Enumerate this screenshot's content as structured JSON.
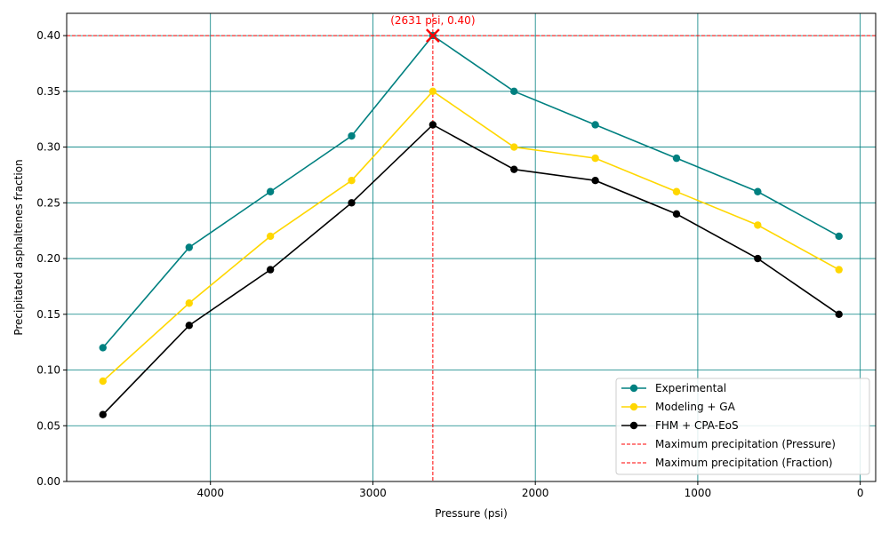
{
  "chart_data": {
    "type": "line",
    "title": "",
    "xlabel": "Pressure (psi)",
    "ylabel": "Precipitated asphaltenes fraction",
    "x_inverted": true,
    "xlim": [
      4885,
      -95
    ],
    "ylim": [
      0,
      0.42
    ],
    "x_ticks": [
      4000,
      3000,
      2000,
      1000,
      0
    ],
    "y_ticks": [
      0.0,
      0.05,
      0.1,
      0.15,
      0.2,
      0.25,
      0.3,
      0.35,
      0.4
    ],
    "grid": true,
    "grid_color": "#008080",
    "legend_position": "lower-right",
    "x": [
      4662,
      4131,
      3631,
      3131,
      2631,
      2131,
      1631,
      1131,
      631,
      131
    ],
    "series": [
      {
        "name": "Experimental",
        "color": "#008080",
        "values": [
          0.12,
          0.21,
          0.26,
          0.31,
          0.4,
          0.35,
          0.32,
          0.29,
          0.26,
          0.22
        ]
      },
      {
        "name": "Modeling + GA",
        "color": "#FFD700",
        "values": [
          0.09,
          0.16,
          0.22,
          0.27,
          0.35,
          0.3,
          0.29,
          0.26,
          0.23,
          0.19
        ]
      },
      {
        "name": "FHM + CPA-EoS",
        "color": "#000000",
        "values": [
          0.06,
          0.14,
          0.19,
          0.25,
          0.32,
          0.28,
          0.27,
          0.24,
          0.2,
          0.15
        ]
      }
    ],
    "reference_lines": [
      {
        "name": "Maximum precipitation (Pressure)",
        "orientation": "vertical",
        "value": 2631,
        "color": "#FF0000",
        "style": "dashed"
      },
      {
        "name": "Maximum precipitation (Fraction)",
        "orientation": "horizontal",
        "value": 0.4,
        "color": "#FF0000",
        "style": "dashed"
      }
    ],
    "annotation": {
      "text": "(2631 psi, 0.40)",
      "x": 2631,
      "y": 0.4,
      "color": "#FF0000",
      "marker": "x"
    }
  }
}
